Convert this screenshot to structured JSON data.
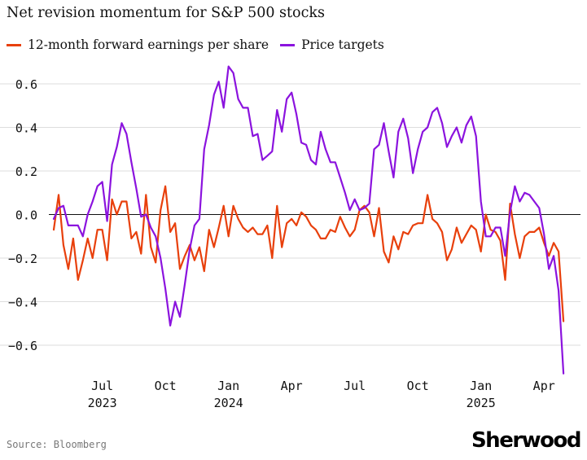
{
  "chart_data": {
    "type": "line",
    "title": "Net revision momentum for S&P 500 stocks",
    "xlabel": "",
    "ylabel": "",
    "ylim": [
      -0.75,
      0.7
    ],
    "yticks": [
      0.6,
      0.4,
      0.2,
      0.0,
      -0.2,
      -0.4,
      -0.6
    ],
    "ytick_labels": [
      "0.6",
      "0.4",
      "0.2",
      "0.0",
      "−0.2",
      "−0.4",
      "−0.6"
    ],
    "xlim": [
      0,
      107
    ],
    "xticks": [
      {
        "x": 10,
        "label": "Jul",
        "year": "2023"
      },
      {
        "x": 23,
        "label": "Oct",
        "year": ""
      },
      {
        "x": 36,
        "label": "Jan",
        "year": "2024"
      },
      {
        "x": 49,
        "label": "Apr",
        "year": ""
      },
      {
        "x": 62,
        "label": "Jul",
        "year": ""
      },
      {
        "x": 75,
        "label": "Oct",
        "year": ""
      },
      {
        "x": 88,
        "label": "Jan",
        "year": "2025"
      },
      {
        "x": 101,
        "label": "Apr",
        "year": ""
      }
    ],
    "grid": true,
    "zero_line": true,
    "legend_position": "top-left",
    "series": [
      {
        "name": "12-month forward earnings per share",
        "color": "#e8400c",
        "values": [
          -0.07,
          0.09,
          -0.14,
          -0.25,
          -0.11,
          -0.3,
          -0.21,
          -0.11,
          -0.2,
          -0.07,
          -0.07,
          -0.21,
          0.07,
          0.0,
          0.06,
          0.06,
          -0.11,
          -0.08,
          -0.18,
          0.09,
          -0.15,
          -0.22,
          0.02,
          0.13,
          -0.08,
          -0.04,
          -0.25,
          -0.19,
          -0.14,
          -0.21,
          -0.15,
          -0.26,
          -0.07,
          -0.15,
          -0.06,
          0.04,
          -0.1,
          0.04,
          -0.02,
          -0.06,
          -0.08,
          -0.06,
          -0.09,
          -0.09,
          -0.05,
          -0.2,
          0.04,
          -0.15,
          -0.04,
          -0.02,
          -0.05,
          0.01,
          -0.01,
          -0.05,
          -0.07,
          -0.11,
          -0.11,
          -0.07,
          -0.08,
          -0.01,
          -0.06,
          -0.1,
          -0.07,
          0.02,
          0.04,
          0.01,
          -0.1,
          0.03,
          -0.17,
          -0.22,
          -0.1,
          -0.16,
          -0.08,
          -0.09,
          -0.05,
          -0.04,
          -0.04,
          0.09,
          -0.02,
          -0.04,
          -0.08,
          -0.21,
          -0.16,
          -0.06,
          -0.13,
          -0.09,
          -0.05,
          -0.07,
          -0.17,
          0.0,
          -0.07,
          -0.08,
          -0.12,
          -0.3,
          0.05,
          -0.09,
          -0.2,
          -0.1,
          -0.08,
          -0.08,
          -0.06,
          -0.13,
          -0.19,
          -0.13,
          -0.17,
          -0.49
        ]
      },
      {
        "name": "Price targets",
        "color": "#8b13de",
        "values": [
          -0.02,
          0.03,
          0.04,
          -0.05,
          -0.05,
          -0.05,
          -0.1,
          0.0,
          0.06,
          0.13,
          0.15,
          -0.03,
          0.23,
          0.31,
          0.42,
          0.37,
          0.24,
          0.12,
          -0.01,
          0.0,
          -0.06,
          -0.1,
          -0.2,
          -0.34,
          -0.51,
          -0.4,
          -0.47,
          -0.32,
          -0.16,
          -0.05,
          -0.02,
          0.3,
          0.41,
          0.55,
          0.61,
          0.49,
          0.68,
          0.65,
          0.53,
          0.49,
          0.49,
          0.36,
          0.37,
          0.25,
          0.27,
          0.29,
          0.48,
          0.38,
          0.53,
          0.56,
          0.46,
          0.33,
          0.32,
          0.25,
          0.23,
          0.38,
          0.3,
          0.24,
          0.24,
          0.17,
          0.1,
          0.02,
          0.07,
          0.02,
          0.03,
          0.05,
          0.3,
          0.32,
          0.42,
          0.29,
          0.17,
          0.38,
          0.44,
          0.35,
          0.19,
          0.3,
          0.38,
          0.4,
          0.47,
          0.49,
          0.42,
          0.31,
          0.36,
          0.4,
          0.33,
          0.41,
          0.45,
          0.36,
          0.06,
          -0.1,
          -0.1,
          -0.06,
          -0.06,
          -0.19,
          0.01,
          0.13,
          0.06,
          0.1,
          0.09,
          0.06,
          0.03,
          -0.09,
          -0.25,
          -0.19,
          -0.35,
          -0.73
        ]
      }
    ]
  },
  "source": "Source: Bloomberg",
  "brand": "Sherwood"
}
